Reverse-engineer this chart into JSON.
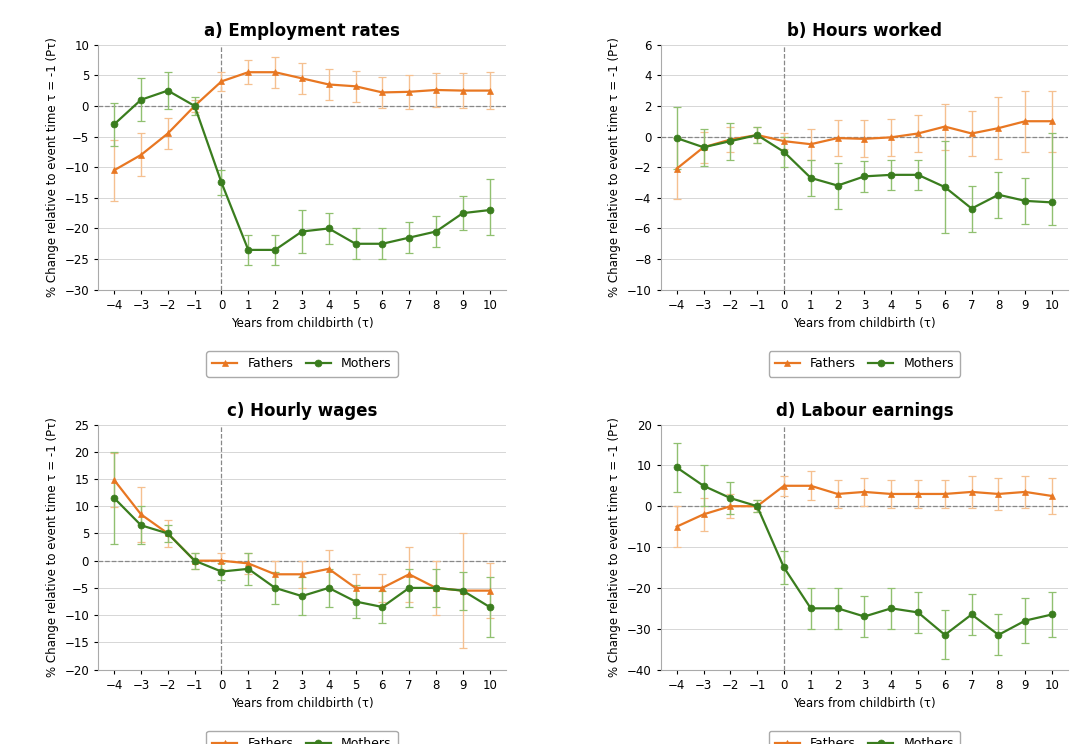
{
  "x": [
    -4,
    -3,
    -2,
    -1,
    0,
    1,
    2,
    3,
    4,
    5,
    6,
    7,
    8,
    9,
    10
  ],
  "panels": [
    {
      "title": "a) Employment rates",
      "ylim": [
        -30,
        10
      ],
      "yticks": [
        -30,
        -25,
        -20,
        -15,
        -10,
        -5,
        0,
        5,
        10
      ],
      "fathers_y": [
        -10.5,
        -8.0,
        -4.5,
        0.0,
        4.0,
        5.5,
        5.5,
        4.5,
        3.5,
        3.2,
        2.2,
        2.3,
        2.6,
        2.5,
        2.5
      ],
      "fathers_yerr_lo": [
        5.0,
        3.5,
        2.5,
        1.0,
        1.5,
        2.0,
        2.5,
        2.5,
        2.5,
        2.5,
        2.5,
        2.8,
        2.8,
        2.8,
        3.0
      ],
      "fathers_yerr_hi": [
        5.0,
        3.5,
        2.5,
        1.0,
        1.5,
        2.0,
        2.5,
        2.5,
        2.5,
        2.5,
        2.5,
        2.8,
        2.8,
        2.8,
        3.0
      ],
      "mothers_y": [
        -3.0,
        1.0,
        2.5,
        0.0,
        -12.5,
        -23.5,
        -23.5,
        -20.5,
        -20.0,
        -22.5,
        -22.5,
        -21.5,
        -20.5,
        -17.5,
        -17.0
      ],
      "mothers_yerr_lo": [
        3.5,
        3.5,
        3.0,
        1.5,
        2.0,
        2.5,
        2.5,
        3.5,
        2.5,
        2.5,
        2.5,
        2.5,
        2.5,
        2.8,
        4.0
      ],
      "mothers_yerr_hi": [
        3.5,
        3.5,
        3.0,
        1.5,
        2.0,
        2.5,
        2.5,
        3.5,
        2.5,
        2.5,
        2.5,
        2.5,
        2.5,
        2.8,
        5.0
      ]
    },
    {
      "title": "b) Hours worked",
      "ylim": [
        -10,
        6
      ],
      "yticks": [
        -10,
        -8,
        -6,
        -4,
        -2,
        0,
        2,
        4,
        6
      ],
      "fathers_y": [
        -2.1,
        -0.7,
        -0.2,
        0.1,
        -0.3,
        -0.5,
        -0.1,
        -0.15,
        -0.05,
        0.2,
        0.65,
        0.2,
        0.55,
        1.0,
        1.0
      ],
      "fathers_yerr_lo": [
        2.0,
        1.0,
        0.8,
        0.5,
        0.5,
        1.0,
        1.2,
        1.2,
        1.2,
        1.2,
        1.5,
        1.5,
        2.0,
        2.0,
        2.0
      ],
      "fathers_yerr_hi": [
        2.0,
        1.0,
        0.8,
        0.5,
        0.5,
        1.0,
        1.2,
        1.2,
        1.2,
        1.2,
        1.5,
        1.5,
        2.0,
        2.0,
        2.0
      ],
      "mothers_y": [
        -0.1,
        -0.7,
        -0.3,
        0.1,
        -1.0,
        -2.7,
        -3.2,
        -2.6,
        -2.5,
        -2.5,
        -3.3,
        -4.7,
        -3.8,
        -4.2,
        -4.3
      ],
      "mothers_yerr_lo": [
        2.0,
        1.2,
        1.2,
        0.5,
        1.0,
        1.2,
        1.5,
        1.0,
        1.0,
        1.0,
        3.0,
        1.5,
        1.5,
        1.5,
        1.5
      ],
      "mothers_yerr_hi": [
        2.0,
        1.2,
        1.2,
        0.5,
        1.0,
        1.2,
        1.5,
        1.0,
        1.0,
        1.0,
        3.0,
        1.5,
        1.5,
        1.5,
        4.5
      ]
    },
    {
      "title": "c) Hourly wages",
      "ylim": [
        -20,
        25
      ],
      "yticks": [
        -20,
        -15,
        -10,
        -5,
        0,
        5,
        10,
        15,
        20,
        25
      ],
      "fathers_y": [
        14.8,
        8.5,
        5.0,
        0.0,
        0.0,
        -0.5,
        -2.5,
        -2.5,
        -1.5,
        -5.0,
        -5.0,
        -2.5,
        -5.0,
        -5.5,
        -5.5
      ],
      "fathers_yerr_lo": [
        5.0,
        5.0,
        2.5,
        1.5,
        1.5,
        2.0,
        2.5,
        2.5,
        3.5,
        2.5,
        2.5,
        5.0,
        5.0,
        10.5,
        5.0
      ],
      "fathers_yerr_hi": [
        5.0,
        5.0,
        2.5,
        1.5,
        1.5,
        2.0,
        2.5,
        2.5,
        3.5,
        2.5,
        2.5,
        5.0,
        5.0,
        10.5,
        5.0
      ],
      "mothers_y": [
        11.5,
        6.5,
        5.0,
        0.0,
        -2.0,
        -1.5,
        -5.0,
        -6.5,
        -5.0,
        -7.5,
        -8.5,
        -5.0,
        -5.0,
        -5.5,
        -8.5
      ],
      "mothers_yerr_lo": [
        8.5,
        3.5,
        1.5,
        1.5,
        1.5,
        3.0,
        3.0,
        3.5,
        3.5,
        3.0,
        3.0,
        3.5,
        3.5,
        3.5,
        5.5
      ],
      "mothers_yerr_hi": [
        8.5,
        3.5,
        1.5,
        1.5,
        1.5,
        3.0,
        3.0,
        3.5,
        3.5,
        3.0,
        3.0,
        3.5,
        3.5,
        3.5,
        5.5
      ]
    },
    {
      "title": "d) Labour earnings",
      "ylim": [
        -40,
        20
      ],
      "yticks": [
        -40,
        -30,
        -20,
        -10,
        0,
        10,
        20
      ],
      "fathers_y": [
        -5.0,
        -2.0,
        0.0,
        0.0,
        5.0,
        5.0,
        3.0,
        3.5,
        3.0,
        3.0,
        3.0,
        3.5,
        3.0,
        3.5,
        2.5
      ],
      "fathers_yerr_lo": [
        5.0,
        4.0,
        3.0,
        1.5,
        2.5,
        3.5,
        3.5,
        3.5,
        3.5,
        3.5,
        3.5,
        4.0,
        4.0,
        4.0,
        4.5
      ],
      "fathers_yerr_hi": [
        5.0,
        4.0,
        3.0,
        1.5,
        2.5,
        3.5,
        3.5,
        3.5,
        3.5,
        3.5,
        3.5,
        4.0,
        4.0,
        4.0,
        4.5
      ],
      "mothers_y": [
        9.5,
        5.0,
        2.0,
        0.0,
        -15.0,
        -25.0,
        -25.0,
        -27.0,
        -25.0,
        -26.0,
        -31.5,
        -26.5,
        -31.5,
        -28.0,
        -26.5
      ],
      "mothers_yerr_lo": [
        6.0,
        5.0,
        4.0,
        1.5,
        4.0,
        5.0,
        5.0,
        5.0,
        5.0,
        5.0,
        6.0,
        5.0,
        5.0,
        5.5,
        5.5
      ],
      "mothers_yerr_hi": [
        6.0,
        5.0,
        4.0,
        1.5,
        4.0,
        5.0,
        5.0,
        5.0,
        5.0,
        5.0,
        6.0,
        5.0,
        5.0,
        5.5,
        5.5
      ]
    }
  ],
  "father_color": "#E87722",
  "mother_color": "#3A7D1E",
  "father_color_light": "#F5C090",
  "mother_color_light": "#90C070",
  "xlabel": "Years from childbirth (τ)",
  "ylabel": "% Change relative to event time τ = -1 (Pτ)",
  "title_fontsize": 12,
  "axis_fontsize": 8.5,
  "tick_fontsize": 8.5,
  "legend_fontsize": 9
}
